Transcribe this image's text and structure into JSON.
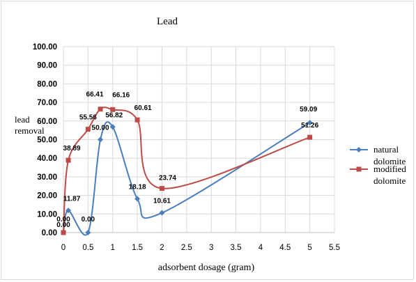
{
  "chart_data": {
    "type": "line",
    "title": "Lead",
    "xlabel": "adsorbent dosage (gram)",
    "ylabel": "lead removal",
    "xlim": [
      0,
      5.5
    ],
    "ylim": [
      0,
      100
    ],
    "x_ticks": [
      "0",
      "0.5",
      "1",
      "1.5",
      "2",
      "2.5",
      "3",
      "3.5",
      "4",
      "4.5",
      "5",
      "5.5"
    ],
    "y_ticks": [
      "0.00",
      "10.00",
      "20.00",
      "30.00",
      "40.00",
      "50.00",
      "60.00",
      "70.00",
      "80.00",
      "90.00",
      "100.00"
    ],
    "smooth": true,
    "legend_position": "right",
    "series": [
      {
        "name": "natural dolomite",
        "color": "#4a7ebb",
        "marker": "diamond",
        "x": [
          0,
          0.1,
          0.5,
          0.75,
          1,
          1.5,
          2,
          5
        ],
        "values": [
          0.0,
          11.87,
          0.0,
          50.0,
          56.82,
          18.18,
          10.61,
          59.09
        ],
        "labels": [
          "0.00",
          "11.87",
          "0.00",
          "50.00",
          "56.82",
          "18.18",
          "10.61",
          "59.09"
        ]
      },
      {
        "name": "modified dolomite",
        "color": "#be4b48",
        "marker": "square",
        "x": [
          0,
          0.1,
          0.5,
          0.75,
          1,
          1.5,
          2,
          5
        ],
        "values": [
          0.0,
          38.89,
          55.56,
          66.41,
          66.16,
          60.61,
          23.74,
          51.26
        ],
        "labels": [
          "0.00",
          "38.89",
          "55.56",
          "66.41",
          "66.16",
          "60.61",
          "23.74",
          "51.26"
        ]
      }
    ]
  }
}
